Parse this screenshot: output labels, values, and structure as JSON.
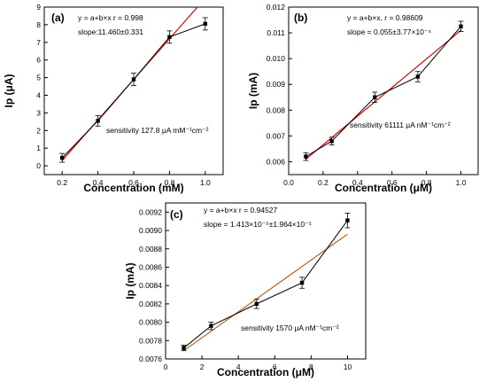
{
  "chart_data": [
    {
      "type": "line",
      "panel_label": "(a)",
      "fit_equation": "y = a+b×x  r = 0.998",
      "slope_text": "slope:11.460±0.331",
      "sensitivity_text": "sensitivity 127.8 μA mM⁻¹cm⁻²",
      "xlabel": "Concentration (mM)",
      "ylabel": "Ip (μA)",
      "xlim": [
        0.1,
        1.1
      ],
      "ylim": [
        -0.5,
        9
      ],
      "xticks": [
        0.2,
        0.4,
        0.6,
        0.8,
        1.0
      ],
      "xtick_labels": [
        "0.2",
        "0.4",
        "0.6",
        "0.8",
        "1.0"
      ],
      "yticks": [
        0,
        1,
        2,
        3,
        4,
        5,
        6,
        7,
        8,
        9
      ],
      "ytick_labels": [
        "0",
        "1",
        "2",
        "3",
        "4",
        "5",
        "6",
        "7",
        "8",
        "9"
      ],
      "grid": false,
      "series": [
        {
          "x": [
            0.2,
            0.4,
            0.6,
            0.8,
            1.0
          ],
          "y": [
            0.45,
            2.55,
            4.9,
            7.3,
            8.05
          ],
          "error": [
            0.25,
            0.3,
            0.35,
            0.35,
            0.35
          ],
          "color": "#000000"
        }
      ],
      "fit_line": {
        "x": [
          0.2,
          1.0
        ],
        "y": [
          0.3,
          9.5
        ],
        "color": "#dd0000"
      }
    },
    {
      "type": "line",
      "panel_label": "(b)",
      "fit_equation": "y = a+b×x,  r = 0.98609",
      "slope_text": "slope = 0.055±3.77×10⁻⁴",
      "sensitivity_text": "sensitivity 61111 μA nM⁻¹cm⁻²",
      "xlabel": "Concentration (μM)",
      "ylabel": "Ip (mA)",
      "xlim": [
        0.0,
        1.1
      ],
      "ylim": [
        0.0055,
        0.012
      ],
      "xticks": [
        0.0,
        0.2,
        0.4,
        0.6,
        0.8,
        1.0
      ],
      "xtick_labels": [
        "0.0",
        "0.2",
        "0.4",
        "0.6",
        "0.8",
        "1.0"
      ],
      "yticks": [
        0.006,
        0.007,
        0.008,
        0.009,
        0.01,
        0.011,
        0.012
      ],
      "ytick_labels": [
        "0.006",
        "0.007",
        "0.008",
        "0.009",
        "0.010",
        "0.011",
        "0.012"
      ],
      "grid": false,
      "series": [
        {
          "x": [
            0.1,
            0.25,
            0.5,
            0.75,
            1.0
          ],
          "y": [
            0.0062,
            0.0068,
            0.0085,
            0.0093,
            0.01125
          ],
          "error": [
            0.00015,
            0.00015,
            0.0002,
            0.0002,
            0.0002
          ],
          "color": "#000000"
        }
      ],
      "fit_line": {
        "x": [
          0.1,
          1.0
        ],
        "y": [
          0.0061,
          0.0111
        ],
        "color": "#dd0000"
      }
    },
    {
      "type": "line",
      "panel_label": "(c)",
      "fit_equation": "y = a+b×x  r = 0.94527",
      "slope_text": "slope = 1.413×10⁻⁵±1.964×10⁻⁵",
      "sensitivity_text": "sensitivity 1570 μA nM⁻¹cm⁻²",
      "xlabel": "Concentration (μM)",
      "ylabel": "Ip (mA)",
      "xlim": [
        0,
        11
      ],
      "ylim": [
        0.0076,
        0.0093
      ],
      "xticks": [
        0,
        2,
        4,
        6,
        8,
        10
      ],
      "xtick_labels": [
        "0",
        "2",
        "4",
        "6",
        "8",
        "10"
      ],
      "yticks": [
        0.0076,
        0.0078,
        0.008,
        0.0082,
        0.0084,
        0.0086,
        0.0088,
        0.009,
        0.0092
      ],
      "ytick_labels": [
        "0.0076",
        "0.0078",
        "0.0080",
        "0.0082",
        "0.0084",
        "0.0086",
        "0.0088",
        "0.0090",
        "0.0092"
      ],
      "grid": false,
      "series": [
        {
          "x": [
            1,
            2.5,
            5,
            7.5,
            10
          ],
          "y": [
            0.00772,
            0.00796,
            0.0082,
            0.00843,
            0.00911
          ],
          "error": [
            3e-05,
            4e-05,
            5e-05,
            6e-05,
            8e-05
          ],
          "color": "#000000"
        }
      ],
      "fit_line": {
        "x": [
          1,
          10
        ],
        "y": [
          0.00769,
          0.00896
        ],
        "color": "#b8651e"
      }
    }
  ]
}
